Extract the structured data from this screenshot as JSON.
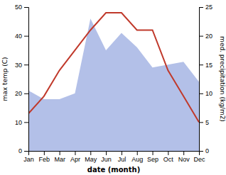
{
  "chart_data": {
    "type": "line",
    "categories": [
      "Jan",
      "Feb",
      "Mar",
      "Apr",
      "May",
      "Jun",
      "Jul",
      "Aug",
      "Sep",
      "Oct",
      "Nov",
      "Dec"
    ],
    "series": [
      {
        "type": "area",
        "color": "#b3c0e8",
        "values": [
          21,
          18,
          18,
          20,
          46,
          35,
          41,
          36,
          29,
          30,
          31,
          24
        ]
      },
      {
        "type": "line",
        "color": "#c0392b",
        "values": [
          13,
          19,
          28,
          35,
          42,
          48,
          48,
          42,
          42,
          28,
          19,
          10
        ]
      }
    ],
    "x_label": "date (month)",
    "y_label": "max temp (C)",
    "y2_label": "med. precipitation (kg/m2)",
    "ylim": [
      0,
      50
    ],
    "yticks": [
      0,
      10,
      20,
      30,
      40,
      50
    ],
    "y2lim": [
      0,
      25
    ],
    "y2ticks": [
      0,
      5,
      10,
      15,
      20,
      25
    ],
    "grid": false
  }
}
